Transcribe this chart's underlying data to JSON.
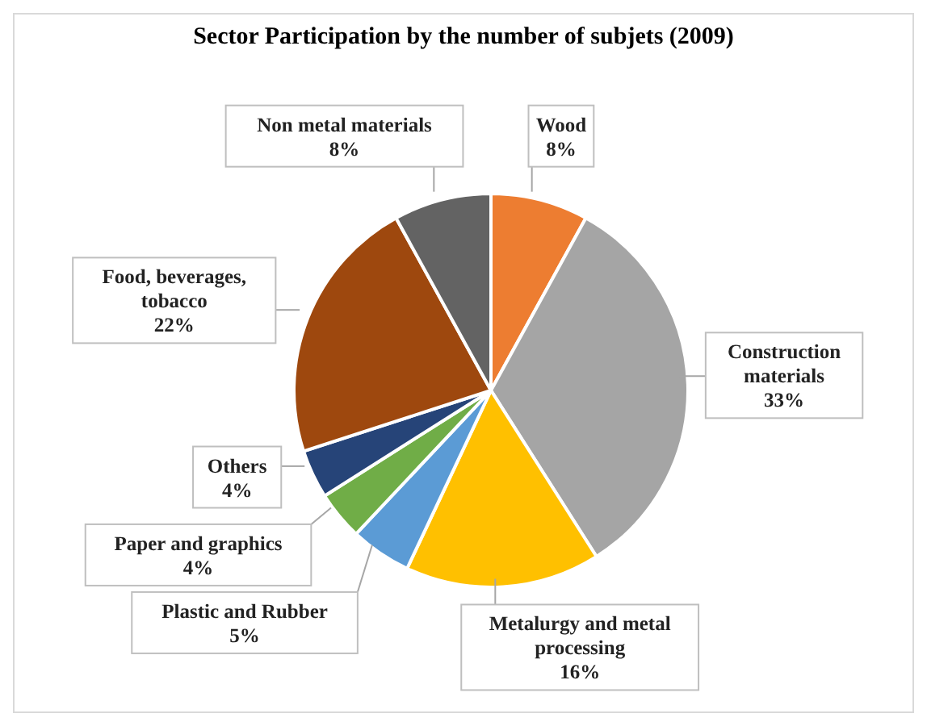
{
  "chart_data": {
    "type": "pie",
    "title": "Sector Participation by the number of subjets (2009)",
    "categories": [
      "Wood",
      "Construction materials",
      "Metalurgy and metal processing",
      "Plastic and Rubber",
      "Paper and graphics",
      "Others",
      "Food, beverages, tobacco",
      "Non metal materials"
    ],
    "values": [
      8,
      33,
      16,
      5,
      4,
      4,
      22,
      8
    ],
    "value_labels": [
      "8%",
      "33%",
      "16%",
      "5%",
      "4%",
      "4%",
      "22%",
      "8%"
    ],
    "colors": [
      "#ed7d31",
      "#a5a5a5",
      "#ffc000",
      "#5b9bd5",
      "#70ad47",
      "#264478",
      "#9e480e",
      "#636363"
    ]
  }
}
